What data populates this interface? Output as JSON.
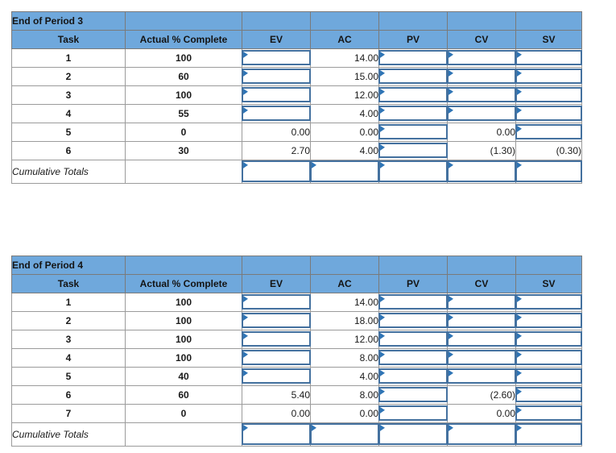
{
  "colors": {
    "header_fill": "#6FA8DC",
    "box_border": "#44719F",
    "flag_marker": "#2E74B5",
    "gridline": "#9B9B9B"
  },
  "columns": [
    "Task",
    "Actual % Complete",
    "EV",
    "AC",
    "PV",
    "CV",
    "SV"
  ],
  "tables": [
    {
      "title": "End of Period 3",
      "cumulative_label": "Cumulative Totals",
      "rows": [
        {
          "task": "1",
          "pct": "100",
          "ev": {
            "type": "input"
          },
          "ac": {
            "type": "value",
            "text": "14.00"
          },
          "pv": {
            "type": "input"
          },
          "cv": {
            "type": "input"
          },
          "sv": {
            "type": "input"
          }
        },
        {
          "task": "2",
          "pct": "60",
          "ev": {
            "type": "input"
          },
          "ac": {
            "type": "value",
            "text": "15.00"
          },
          "pv": {
            "type": "input"
          },
          "cv": {
            "type": "input"
          },
          "sv": {
            "type": "input"
          }
        },
        {
          "task": "3",
          "pct": "100",
          "ev": {
            "type": "input"
          },
          "ac": {
            "type": "value",
            "text": "12.00"
          },
          "pv": {
            "type": "input"
          },
          "cv": {
            "type": "input"
          },
          "sv": {
            "type": "input"
          }
        },
        {
          "task": "4",
          "pct": "55",
          "ev": {
            "type": "input"
          },
          "ac": {
            "type": "value",
            "text": "4.00"
          },
          "pv": {
            "type": "input"
          },
          "cv": {
            "type": "input"
          },
          "sv": {
            "type": "input"
          }
        },
        {
          "task": "5",
          "pct": "0",
          "ev": {
            "type": "value",
            "text": "0.00"
          },
          "ac": {
            "type": "value",
            "text": "0.00"
          },
          "pv": {
            "type": "input"
          },
          "cv": {
            "type": "value",
            "text": "0.00"
          },
          "sv": {
            "type": "input"
          }
        },
        {
          "task": "6",
          "pct": "30",
          "ev": {
            "type": "value",
            "text": "2.70"
          },
          "ac": {
            "type": "value",
            "text": "4.00"
          },
          "pv": {
            "type": "input"
          },
          "cv": {
            "type": "value",
            "text": "(1.30)"
          },
          "sv": {
            "type": "value",
            "text": "(0.30)"
          }
        }
      ],
      "cumulative": {
        "ev": {
          "type": "input"
        },
        "ac": {
          "type": "input"
        },
        "pv": {
          "type": "input"
        },
        "cv": {
          "type": "input"
        },
        "sv": {
          "type": "input"
        }
      }
    },
    {
      "title": "End of Period 4",
      "cumulative_label": "Cumulative Totals",
      "rows": [
        {
          "task": "1",
          "pct": "100",
          "ev": {
            "type": "input"
          },
          "ac": {
            "type": "value",
            "text": "14.00"
          },
          "pv": {
            "type": "input"
          },
          "cv": {
            "type": "input"
          },
          "sv": {
            "type": "input"
          }
        },
        {
          "task": "2",
          "pct": "100",
          "ev": {
            "type": "input"
          },
          "ac": {
            "type": "value",
            "text": "18.00"
          },
          "pv": {
            "type": "input"
          },
          "cv": {
            "type": "input"
          },
          "sv": {
            "type": "input"
          }
        },
        {
          "task": "3",
          "pct": "100",
          "ev": {
            "type": "input"
          },
          "ac": {
            "type": "value",
            "text": "12.00"
          },
          "pv": {
            "type": "input"
          },
          "cv": {
            "type": "input"
          },
          "sv": {
            "type": "input"
          }
        },
        {
          "task": "4",
          "pct": "100",
          "ev": {
            "type": "input"
          },
          "ac": {
            "type": "value",
            "text": "8.00"
          },
          "pv": {
            "type": "input"
          },
          "cv": {
            "type": "input"
          },
          "sv": {
            "type": "input"
          }
        },
        {
          "task": "5",
          "pct": "40",
          "ev": {
            "type": "input"
          },
          "ac": {
            "type": "value",
            "text": "4.00"
          },
          "pv": {
            "type": "input"
          },
          "cv": {
            "type": "input"
          },
          "sv": {
            "type": "input"
          }
        },
        {
          "task": "6",
          "pct": "60",
          "ev": {
            "type": "value",
            "text": "5.40"
          },
          "ac": {
            "type": "value",
            "text": "8.00"
          },
          "pv": {
            "type": "input"
          },
          "cv": {
            "type": "value",
            "text": "(2.60)"
          },
          "sv": {
            "type": "input"
          }
        },
        {
          "task": "7",
          "pct": "0",
          "ev": {
            "type": "value",
            "text": "0.00"
          },
          "ac": {
            "type": "value",
            "text": "0.00"
          },
          "pv": {
            "type": "input"
          },
          "cv": {
            "type": "value",
            "text": "0.00"
          },
          "sv": {
            "type": "input"
          }
        }
      ],
      "cumulative": {
        "ev": {
          "type": "input"
        },
        "ac": {
          "type": "input"
        },
        "pv": {
          "type": "input"
        },
        "cv": {
          "type": "input"
        },
        "sv": {
          "type": "input"
        }
      }
    }
  ]
}
